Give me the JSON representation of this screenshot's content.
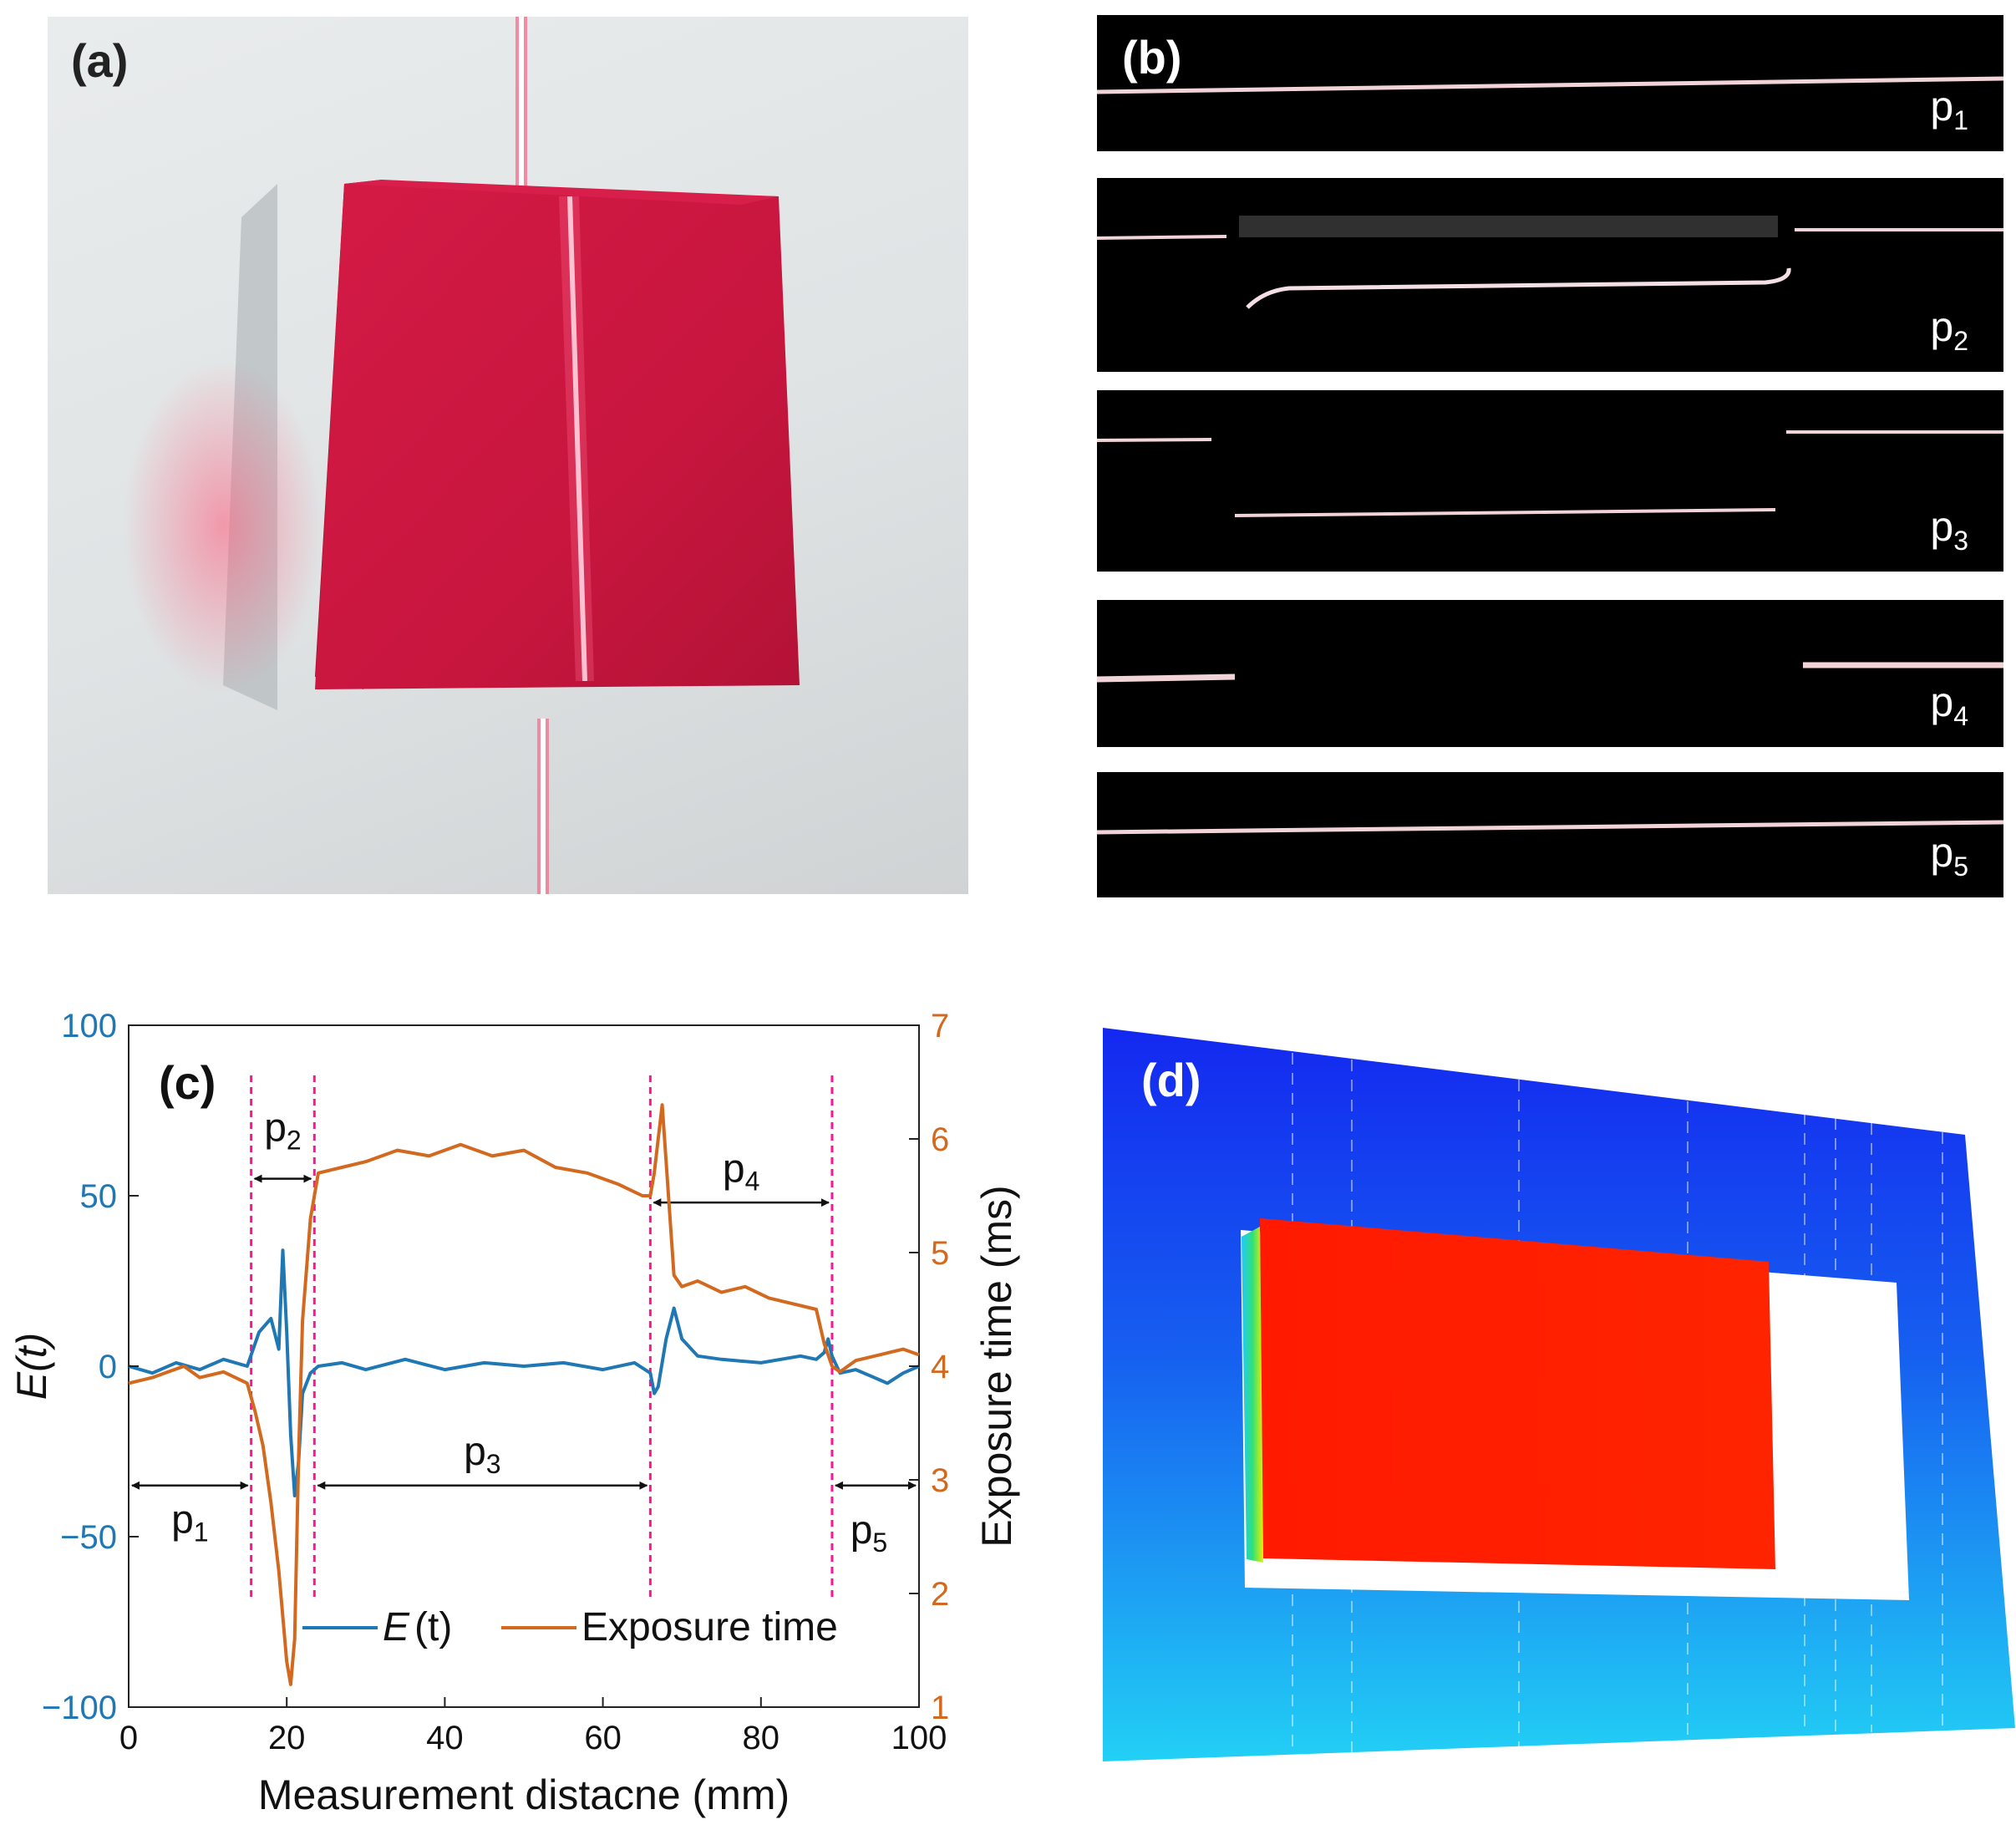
{
  "panels": {
    "a": {
      "label": "(a)"
    },
    "b": {
      "label": "(b)",
      "strips": [
        {
          "name": "p",
          "sub": "1"
        },
        {
          "name": "p",
          "sub": "2"
        },
        {
          "name": "p",
          "sub": "3"
        },
        {
          "name": "p",
          "sub": "4"
        },
        {
          "name": "p",
          "sub": "5"
        }
      ]
    },
    "c": {
      "label": "(c)"
    },
    "d": {
      "label": "(d)"
    }
  },
  "chart_data": {
    "type": "line",
    "xlabel": "Measurement distacne (mm)",
    "ylabel_left": "E(t)",
    "ylabel_right": "Exposure time (ms)",
    "xlim": [
      0,
      100
    ],
    "ylim_left": [
      -100,
      100
    ],
    "ylim_right": [
      1,
      7
    ],
    "xticks": [
      "0",
      "20",
      "40",
      "60",
      "80",
      "100"
    ],
    "yticks_left": [
      "100",
      "50",
      "0",
      "−50",
      "−100"
    ],
    "yticks_right": [
      "7",
      "6",
      "5",
      "4",
      "3",
      "2",
      "1"
    ],
    "colors": {
      "E": "#1f77b4",
      "exposure": "#d2691e",
      "divider": "#ff1493"
    },
    "legend": {
      "e_label": "E",
      "e_arg": "(t)",
      "exposure_label": "Exposure time"
    },
    "dividers_mm": [
      15.5,
      23.5,
      66,
      89
    ],
    "segments": [
      {
        "name": "p",
        "sub": "1",
        "from": 0,
        "to": 15.5
      },
      {
        "name": "p",
        "sub": "2",
        "from": 15.5,
        "to": 23.5
      },
      {
        "name": "p",
        "sub": "3",
        "from": 23.5,
        "to": 66
      },
      {
        "name": "p",
        "sub": "4",
        "from": 66,
        "to": 89
      },
      {
        "name": "p",
        "sub": "5",
        "from": 89,
        "to": 100
      }
    ],
    "series": [
      {
        "name": "E(t)",
        "axis": "left",
        "x": [
          0,
          3,
          6,
          9,
          12,
          15,
          16.5,
          18,
          19,
          19.5,
          20,
          20.5,
          21,
          21.5,
          22,
          23,
          24,
          27,
          30,
          35,
          40,
          45,
          50,
          55,
          60,
          64,
          66,
          66.5,
          67,
          68,
          69,
          70,
          72,
          75,
          80,
          85,
          87,
          88,
          88.5,
          89,
          90,
          92,
          94,
          96,
          98,
          100
        ],
        "values": [
          0,
          -2,
          1,
          -1,
          2,
          0,
          10,
          14,
          5,
          34,
          10,
          -20,
          -38,
          -28,
          -8,
          -2,
          0,
          1,
          -1,
          2,
          -1,
          1,
          0,
          1,
          -1,
          1,
          -2,
          -8,
          -6,
          8,
          17,
          8,
          3,
          2,
          1,
          3,
          2,
          4,
          8,
          3,
          -2,
          -1,
          -3,
          -5,
          -2,
          0
        ]
      },
      {
        "name": "Exposure time",
        "axis": "right",
        "x": [
          0,
          3,
          5,
          7,
          9,
          12,
          15,
          16,
          17,
          18,
          19,
          20,
          20.5,
          21,
          21.5,
          22,
          23,
          24,
          27,
          30,
          34,
          38,
          42,
          46,
          50,
          54,
          58,
          62,
          65,
          66,
          66.5,
          67,
          67.5,
          68,
          68.5,
          69,
          70,
          72,
          75,
          78,
          81,
          84,
          87,
          88,
          89,
          90,
          92,
          95,
          98,
          100
        ],
        "values": [
          3.85,
          3.9,
          3.95,
          4.0,
          3.9,
          3.95,
          3.85,
          3.6,
          3.3,
          2.8,
          2.2,
          1.4,
          1.2,
          1.6,
          3.2,
          4.4,
          5.3,
          5.7,
          5.75,
          5.8,
          5.9,
          5.85,
          5.95,
          5.85,
          5.9,
          5.75,
          5.7,
          5.6,
          5.5,
          5.5,
          5.7,
          6.0,
          6.3,
          5.8,
          5.3,
          4.8,
          4.7,
          4.75,
          4.65,
          4.7,
          4.6,
          4.55,
          4.5,
          4.2,
          4.0,
          3.95,
          4.05,
          4.1,
          4.15,
          4.1
        ]
      }
    ]
  }
}
